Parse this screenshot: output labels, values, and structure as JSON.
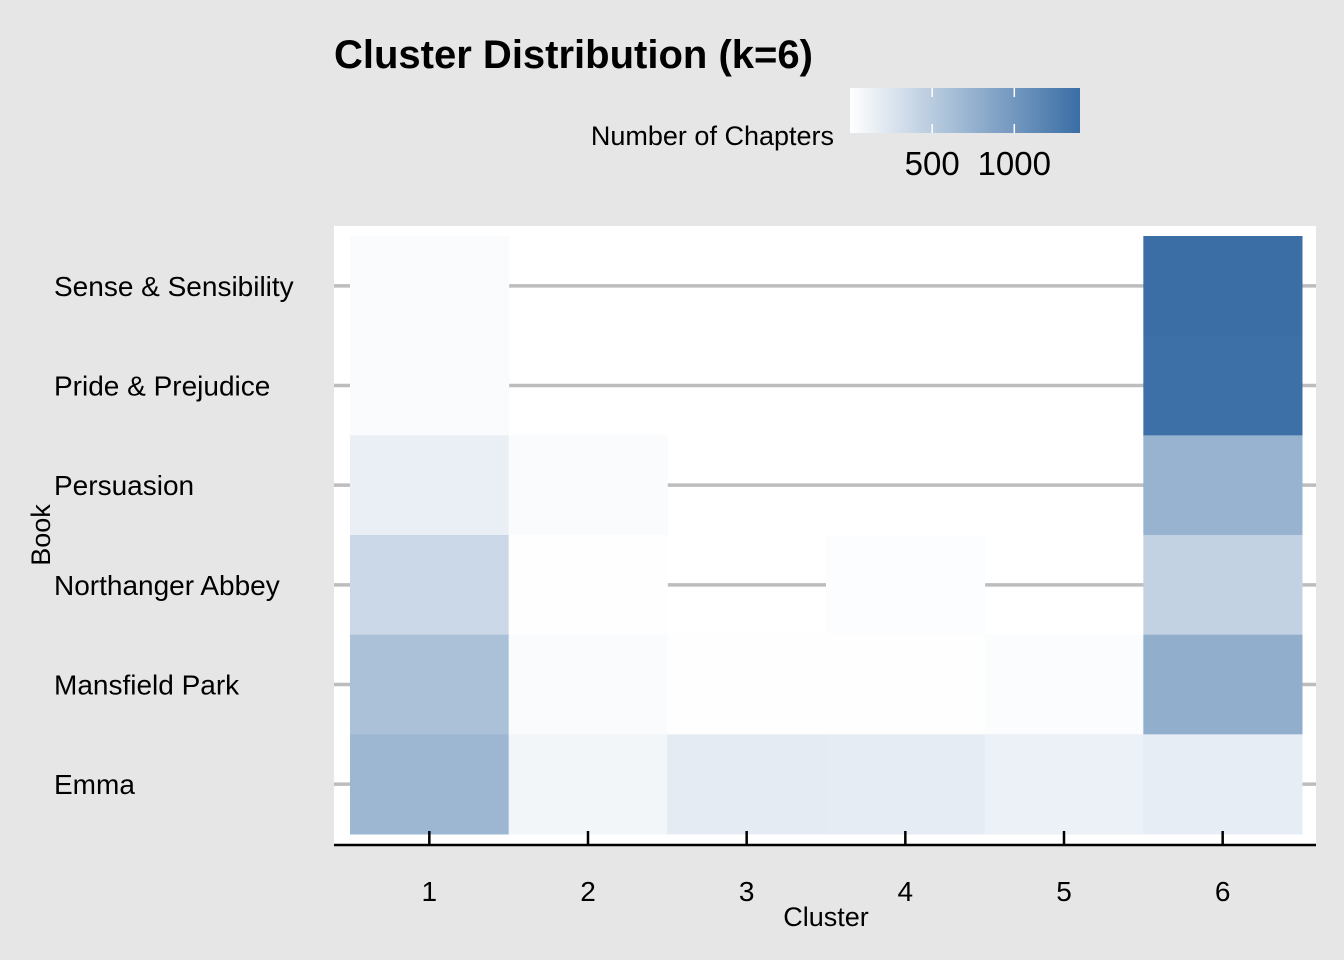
{
  "chart_data": {
    "type": "heatmap",
    "title": "Cluster Distribution (k=6)",
    "xlabel": "Cluster",
    "ylabel": "Book",
    "legend": {
      "title": "Number of Chapters",
      "ticks": [
        500,
        1000
      ],
      "tick_labels": [
        "500",
        "1000"
      ],
      "range": [
        0,
        1400
      ],
      "low_color": "#ffffff",
      "high_color": "#3a6ea5",
      "placement": "top"
    },
    "x_categories": [
      "1",
      "2",
      "3",
      "4",
      "5",
      "6"
    ],
    "y_categories": [
      "Sense & Sensibility",
      "Pride & Prejudice",
      "Persuasion",
      "Northanger Abbey",
      "Mansfield Park",
      "Emma"
    ],
    "cells": [
      {
        "book": "Sense & Sensibility",
        "cluster": "1",
        "value": 40
      },
      {
        "book": "Sense & Sensibility",
        "cluster": "6",
        "value": 1400
      },
      {
        "book": "Pride & Prejudice",
        "cluster": "1",
        "value": 40
      },
      {
        "book": "Pride & Prejudice",
        "cluster": "6",
        "value": 1380
      },
      {
        "book": "Persuasion",
        "cluster": "1",
        "value": 150
      },
      {
        "book": "Persuasion",
        "cluster": "2",
        "value": 40
      },
      {
        "book": "Persuasion",
        "cluster": "6",
        "value": 730
      },
      {
        "book": "Northanger Abbey",
        "cluster": "1",
        "value": 380
      },
      {
        "book": "Northanger Abbey",
        "cluster": "2",
        "value": 5
      },
      {
        "book": "Northanger Abbey",
        "cluster": "4",
        "value": 20
      },
      {
        "book": "Northanger Abbey",
        "cluster": "6",
        "value": 430
      },
      {
        "book": "Mansfield Park",
        "cluster": "1",
        "value": 600
      },
      {
        "book": "Mansfield Park",
        "cluster": "2",
        "value": 40
      },
      {
        "book": "Mansfield Park",
        "cluster": "3",
        "value": 5
      },
      {
        "book": "Mansfield Park",
        "cluster": "4",
        "value": 5
      },
      {
        "book": "Mansfield Park",
        "cluster": "5",
        "value": 25
      },
      {
        "book": "Mansfield Park",
        "cluster": "6",
        "value": 780
      },
      {
        "book": "Emma",
        "cluster": "1",
        "value": 700
      },
      {
        "book": "Emma",
        "cluster": "2",
        "value": 90
      },
      {
        "book": "Emma",
        "cluster": "3",
        "value": 190
      },
      {
        "book": "Emma",
        "cluster": "4",
        "value": 185
      },
      {
        "book": "Emma",
        "cluster": "5",
        "value": 140
      },
      {
        "book": "Emma",
        "cluster": "6",
        "value": 170
      }
    ],
    "grid": true
  }
}
